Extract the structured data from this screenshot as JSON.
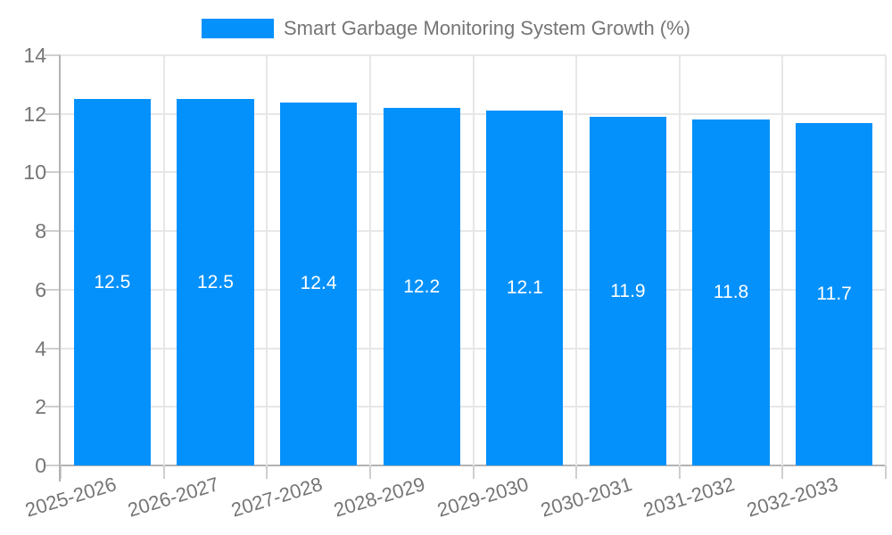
{
  "legend": {
    "label": "Smart Garbage Monitoring System Growth (%)"
  },
  "chart_data": {
    "type": "bar",
    "title": "Smart Garbage Monitoring System Growth (%)",
    "categories": [
      "2025-2026",
      "2026-2027",
      "2027-2028",
      "2028-2029",
      "2029-2030",
      "2030-2031",
      "2031-2032",
      "2032-2033"
    ],
    "values": [
      12.5,
      12.5,
      12.4,
      12.2,
      12.1,
      11.9,
      11.8,
      11.7
    ],
    "bar_labels": [
      "12.5",
      "12.5",
      "12.4",
      "12.2",
      "12.1",
      "11.9",
      "11.8",
      "11.7"
    ],
    "xlabel": "",
    "ylabel": "",
    "ylim": [
      0,
      14
    ],
    "yticks": [
      0,
      2,
      4,
      6,
      8,
      10,
      12,
      14
    ],
    "grid": true,
    "legend_position": "top-center",
    "colors": {
      "bar": "#0591fb",
      "grid": "#e7e7e7",
      "axis": "#b3b3b3",
      "tick": "#cfcfcf",
      "text": "#757575",
      "bar_label": "#ffffff",
      "background": "#ffffff"
    }
  }
}
